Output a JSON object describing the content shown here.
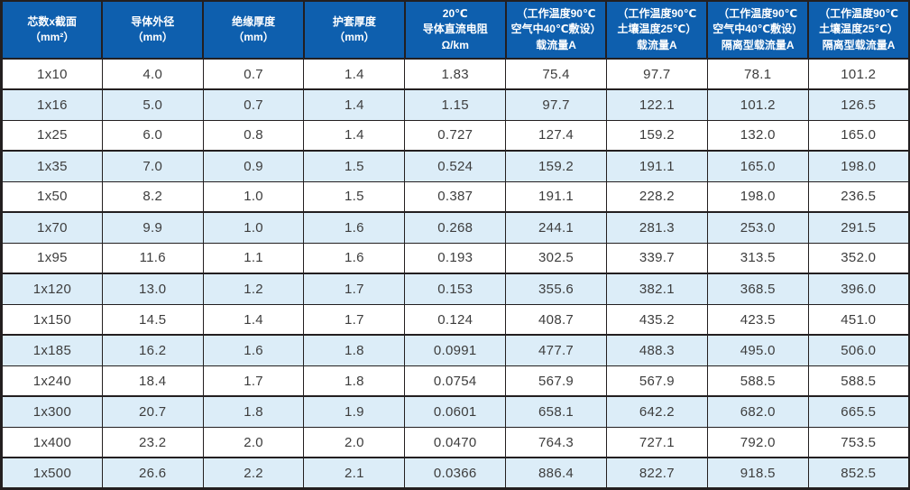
{
  "table": {
    "columns": [
      {
        "lines": [
          "芯数x截面",
          "（mm²）"
        ]
      },
      {
        "lines": [
          "导体外径",
          "（mm）"
        ]
      },
      {
        "lines": [
          "绝缘厚度",
          "（mm）"
        ]
      },
      {
        "lines": [
          "护套厚度",
          "（mm）"
        ]
      },
      {
        "lines": [
          "20℃",
          "导体直流电阻",
          "Ω/km"
        ]
      },
      {
        "lines": [
          "（工作温度90℃",
          "空气中40℃敷设）",
          "载流量A"
        ]
      },
      {
        "lines": [
          "（工作温度90℃",
          "土壤温度25℃）",
          "载流量A"
        ]
      },
      {
        "lines": [
          "（工作温度90℃",
          "空气中40℃敷设）",
          "隔离型载流量A"
        ]
      },
      {
        "lines": [
          "（工作温度90℃",
          "土壤温度25℃）",
          "隔离型载流量A"
        ]
      }
    ],
    "rows": [
      [
        "1x10",
        "4.0",
        "0.7",
        "1.4",
        "1.83",
        "75.4",
        "97.7",
        "78.1",
        "101.2"
      ],
      [
        "1x16",
        "5.0",
        "0.7",
        "1.4",
        "1.15",
        "97.7",
        "122.1",
        "101.2",
        "126.5"
      ],
      [
        "1x25",
        "6.0",
        "0.8",
        "1.4",
        "0.727",
        "127.4",
        "159.2",
        "132.0",
        "165.0"
      ],
      [
        "1x35",
        "7.0",
        "0.9",
        "1.5",
        "0.524",
        "159.2",
        "191.1",
        "165.0",
        "198.0"
      ],
      [
        "1x50",
        "8.2",
        "1.0",
        "1.5",
        "0.387",
        "191.1",
        "228.2",
        "198.0",
        "236.5"
      ],
      [
        "1x70",
        "9.9",
        "1.0",
        "1.6",
        "0.268",
        "244.1",
        "281.3",
        "253.0",
        "291.5"
      ],
      [
        "1x95",
        "11.6",
        "1.1",
        "1.6",
        "0.193",
        "302.5",
        "339.7",
        "313.5",
        "352.0"
      ],
      [
        "1x120",
        "13.0",
        "1.2",
        "1.7",
        "0.153",
        "355.6",
        "382.1",
        "368.5",
        "396.0"
      ],
      [
        "1x150",
        "14.5",
        "1.4",
        "1.7",
        "0.124",
        "408.7",
        "435.2",
        "423.5",
        "451.0"
      ],
      [
        "1x185",
        "16.2",
        "1.6",
        "1.8",
        "0.0991",
        "477.7",
        "488.3",
        "495.0",
        "506.0"
      ],
      [
        "1x240",
        "18.4",
        "1.7",
        "1.8",
        "0.0754",
        "567.9",
        "567.9",
        "588.5",
        "588.5"
      ],
      [
        "1x300",
        "20.7",
        "1.8",
        "1.9",
        "0.0601",
        "658.1",
        "642.2",
        "682.0",
        "665.5"
      ],
      [
        "1x400",
        "23.2",
        "2.0",
        "2.0",
        "0.0470",
        "764.3",
        "727.1",
        "792.0",
        "753.5"
      ],
      [
        "1x500",
        "26.6",
        "2.2",
        "2.1",
        "0.0366",
        "886.4",
        "822.7",
        "918.5",
        "852.5"
      ]
    ]
  },
  "colors": {
    "header_bg": "#0e5fae",
    "header_text": "#ffffff",
    "stripe_bg": "#dcedf8",
    "border": "#231f20",
    "body_text": "#3d3d3d"
  }
}
